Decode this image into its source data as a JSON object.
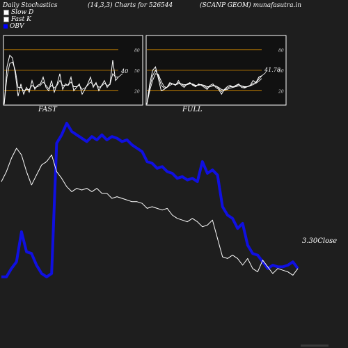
{
  "header": {
    "left": "Daily Stochastics",
    "mid": "(14,3,3) Charts for 526544",
    "right": "(SCANP GEOM) munafasutra.in"
  },
  "legend": [
    {
      "label": "Slow  D",
      "color": "#ffffff"
    },
    {
      "label": "Fast K",
      "color": "#ffffff"
    },
    {
      "label": "OBV",
      "color": "#0000ff"
    }
  ],
  "colors": {
    "obv": "#1010e0",
    "close": "#ffffff",
    "band": "#cc8400",
    "panel_bg": "#111111"
  },
  "chart_data": [
    {
      "type": "line",
      "panel": "FAST",
      "yticks": [
        20,
        50,
        80
      ],
      "ylim": [
        0,
        100
      ],
      "bands": [
        20,
        80
      ],
      "last_value_label": "40",
      "series": [
        {
          "values": [
            0,
            55,
            72,
            68,
            45,
            12,
            30,
            15,
            25,
            18,
            35,
            22,
            28,
            30,
            40,
            25,
            20,
            35,
            18,
            30,
            45,
            22,
            30,
            28,
            40,
            20,
            25,
            30,
            15,
            22,
            30,
            40,
            25,
            32,
            20,
            28,
            35,
            25,
            30,
            65,
            35,
            40
          ]
        },
        {
          "values": [
            0,
            40,
            60,
            62,
            50,
            25,
            25,
            20,
            22,
            22,
            28,
            25,
            26,
            28,
            33,
            28,
            23,
            28,
            24,
            28,
            35,
            28,
            28,
            28,
            33,
            26,
            26,
            28,
            22,
            24,
            28,
            33,
            28,
            30,
            25,
            27,
            31,
            28,
            29,
            45,
            40,
            40
          ]
        }
      ]
    },
    {
      "type": "line",
      "panel": "FULL",
      "yticks": [
        20,
        50,
        80
      ],
      "ylim": [
        0,
        100
      ],
      "bands": [
        20,
        80
      ],
      "last_value_label": "41.78",
      "series": [
        {
          "values": [
            0,
            30,
            50,
            55,
            38,
            20,
            22,
            25,
            32,
            30,
            28,
            35,
            28,
            25,
            30,
            32,
            28,
            26,
            30,
            28,
            25,
            22,
            28,
            30,
            25,
            22,
            15,
            22,
            26,
            28,
            25,
            28,
            30,
            25,
            24,
            26,
            28,
            35,
            32,
            40,
            42
          ]
        },
        {
          "values": [
            0,
            25,
            42,
            50,
            42,
            28,
            24,
            25,
            30,
            30,
            29,
            32,
            30,
            27,
            29,
            31,
            29,
            27,
            29,
            29,
            27,
            24,
            26,
            28,
            27,
            24,
            19,
            21,
            24,
            26,
            26,
            27,
            29,
            27,
            25,
            26,
            27,
            31,
            32,
            37,
            41.78
          ]
        },
        {
          "values": [
            0,
            20,
            35,
            45,
            44,
            34,
            26,
            25,
            28,
            30,
            29,
            30,
            30,
            29,
            29,
            30,
            30,
            28,
            28,
            29,
            28,
            26,
            26,
            27,
            27,
            25,
            22,
            21,
            22,
            24,
            25,
            26,
            27,
            27,
            26,
            26,
            27,
            29,
            31,
            34,
            38
          ]
        }
      ]
    },
    {
      "type": "line",
      "panel": "OBV & Close",
      "close_label": "3.30Close",
      "series": [
        {
          "name": "OBV",
          "values": [
            3,
            3,
            8,
            12,
            30,
            18,
            17,
            10,
            5,
            3,
            5,
            83,
            88,
            95,
            90,
            88,
            86,
            84,
            87,
            85,
            88,
            85,
            87,
            86,
            84,
            85,
            82,
            80,
            78,
            72,
            71,
            68,
            69,
            66,
            65,
            62,
            63,
            61,
            62,
            60,
            72,
            65,
            67,
            64,
            45,
            40,
            38,
            32,
            35,
            22,
            17,
            16,
            12,
            8,
            10,
            9,
            9,
            10,
            12,
            8
          ]
        },
        {
          "name": "Close",
          "values": [
            60,
            66,
            74,
            80,
            76,
            66,
            58,
            64,
            70,
            72,
            76,
            66,
            62,
            57,
            54,
            56,
            55,
            56,
            54,
            56,
            53,
            53,
            50,
            51,
            50,
            49,
            48,
            48,
            47,
            44,
            45,
            44,
            43,
            44,
            40,
            38,
            37,
            36,
            38,
            36,
            33,
            34,
            37,
            26,
            15,
            14,
            16,
            14,
            10,
            14,
            8,
            6,
            13,
            9,
            5,
            8,
            7,
            6,
            4,
            8
          ]
        }
      ]
    }
  ]
}
